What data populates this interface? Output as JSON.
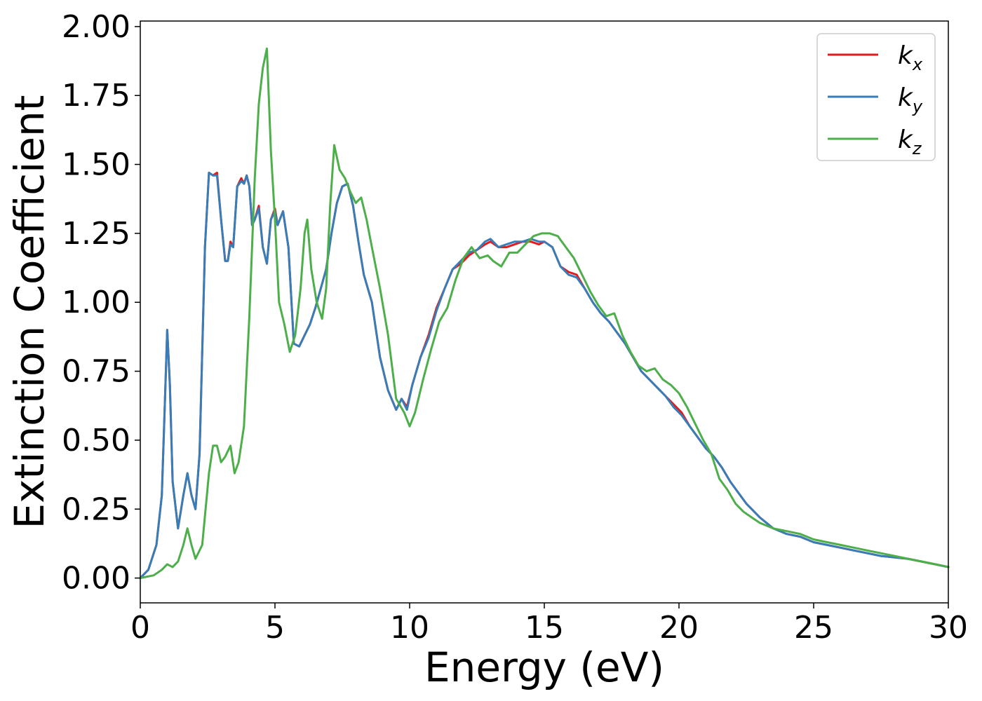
{
  "chart_data": {
    "type": "line",
    "xlabel": "Energy (eV)",
    "ylabel": "Extinction Coefficient",
    "xlim": [
      0,
      30
    ],
    "ylim": [
      -0.09,
      2.02
    ],
    "x_ticks": [
      0,
      5,
      10,
      15,
      20,
      25,
      30
    ],
    "x_tick_labels": [
      "0",
      "5",
      "10",
      "15",
      "20",
      "25",
      "30"
    ],
    "y_ticks": [
      0.0,
      0.25,
      0.5,
      0.75,
      1.0,
      1.25,
      1.5,
      1.75,
      2.0
    ],
    "y_tick_labels": [
      "0.00",
      "0.25",
      "0.50",
      "0.75",
      "1.00",
      "1.25",
      "1.50",
      "1.75",
      "2.00"
    ],
    "grid": false,
    "legend_position": "top-right",
    "series": [
      {
        "name": "k_x",
        "legend_base": "k",
        "legend_sub": "x",
        "color": "#e41a1c",
        "x": [
          0,
          0.3,
          0.6,
          0.8,
          0.9,
          1.0,
          1.1,
          1.2,
          1.4,
          1.6,
          1.75,
          1.9,
          2.05,
          2.2,
          2.4,
          2.55,
          2.7,
          2.85,
          3.0,
          3.15,
          3.25,
          3.35,
          3.45,
          3.6,
          3.75,
          3.85,
          3.95,
          4.05,
          4.15,
          4.25,
          4.4,
          4.55,
          4.7,
          4.85,
          5.0,
          5.1,
          5.3,
          5.5,
          5.7,
          5.9,
          6.1,
          6.3,
          6.5,
          6.7,
          6.9,
          7.1,
          7.3,
          7.5,
          7.7,
          7.9,
          8.1,
          8.3,
          8.6,
          8.9,
          9.2,
          9.5,
          9.7,
          9.9,
          10.1,
          10.4,
          10.7,
          11.0,
          11.3,
          11.6,
          11.9,
          12.2,
          12.5,
          12.8,
          13.0,
          13.3,
          13.6,
          13.9,
          14.2,
          14.5,
          14.8,
          15.0,
          15.3,
          15.6,
          15.9,
          16.2,
          16.5,
          16.8,
          17.1,
          17.4,
          17.7,
          18.0,
          18.3,
          18.6,
          18.9,
          19.2,
          19.5,
          19.8,
          20.1,
          20.4,
          20.7,
          21.0,
          21.3,
          21.6,
          21.9,
          22.2,
          22.5,
          23.0,
          23.5,
          24.0,
          24.5,
          25.0,
          25.5,
          26.0,
          26.5,
          27.0,
          27.5,
          28.0,
          28.5,
          29.0,
          29.5,
          30.0
        ],
        "y": [
          0.0,
          0.03,
          0.12,
          0.3,
          0.6,
          0.9,
          0.7,
          0.35,
          0.18,
          0.3,
          0.38,
          0.3,
          0.25,
          0.45,
          1.2,
          1.47,
          1.46,
          1.47,
          1.3,
          1.15,
          1.15,
          1.22,
          1.2,
          1.42,
          1.45,
          1.43,
          1.46,
          1.42,
          1.28,
          1.3,
          1.35,
          1.2,
          1.14,
          1.3,
          1.34,
          1.28,
          1.33,
          1.2,
          0.85,
          0.84,
          0.88,
          0.92,
          0.98,
          1.05,
          1.12,
          1.25,
          1.36,
          1.42,
          1.43,
          1.35,
          1.22,
          1.1,
          1.0,
          0.8,
          0.68,
          0.61,
          0.65,
          0.62,
          0.7,
          0.8,
          0.88,
          0.98,
          1.05,
          1.12,
          1.14,
          1.17,
          1.19,
          1.21,
          1.22,
          1.2,
          1.2,
          1.21,
          1.22,
          1.22,
          1.21,
          1.22,
          1.2,
          1.13,
          1.11,
          1.1,
          1.05,
          1.0,
          0.96,
          0.93,
          0.89,
          0.85,
          0.8,
          0.75,
          0.72,
          0.69,
          0.66,
          0.63,
          0.6,
          0.55,
          0.51,
          0.47,
          0.44,
          0.4,
          0.35,
          0.31,
          0.27,
          0.22,
          0.18,
          0.16,
          0.15,
          0.13,
          0.12,
          0.11,
          0.1,
          0.09,
          0.08,
          0.075,
          0.07,
          0.06,
          0.05,
          0.04
        ]
      },
      {
        "name": "k_y",
        "legend_base": "k",
        "legend_sub": "y",
        "color": "#377eb8",
        "x": [
          0,
          0.3,
          0.6,
          0.8,
          0.9,
          1.0,
          1.1,
          1.2,
          1.4,
          1.6,
          1.75,
          1.9,
          2.05,
          2.2,
          2.4,
          2.55,
          2.7,
          2.85,
          3.0,
          3.15,
          3.25,
          3.35,
          3.45,
          3.6,
          3.75,
          3.85,
          3.95,
          4.05,
          4.15,
          4.25,
          4.4,
          4.55,
          4.7,
          4.85,
          5.0,
          5.1,
          5.3,
          5.5,
          5.7,
          5.9,
          6.1,
          6.3,
          6.5,
          6.7,
          6.9,
          7.1,
          7.3,
          7.5,
          7.7,
          7.9,
          8.1,
          8.3,
          8.6,
          8.9,
          9.2,
          9.5,
          9.7,
          9.9,
          10.1,
          10.4,
          10.7,
          11.0,
          11.3,
          11.6,
          11.9,
          12.2,
          12.5,
          12.8,
          13.0,
          13.3,
          13.6,
          13.9,
          14.2,
          14.5,
          14.8,
          15.0,
          15.3,
          15.6,
          15.9,
          16.2,
          16.5,
          16.8,
          17.1,
          17.4,
          17.7,
          18.0,
          18.3,
          18.6,
          18.9,
          19.2,
          19.5,
          19.8,
          20.1,
          20.4,
          20.7,
          21.0,
          21.3,
          21.6,
          21.9,
          22.2,
          22.5,
          23.0,
          23.5,
          24.0,
          24.5,
          25.0,
          25.5,
          26.0,
          26.5,
          27.0,
          27.5,
          28.0,
          28.5,
          29.0,
          29.5,
          30.0
        ],
        "y": [
          0.0,
          0.03,
          0.12,
          0.3,
          0.6,
          0.9,
          0.7,
          0.35,
          0.18,
          0.3,
          0.38,
          0.3,
          0.25,
          0.45,
          1.2,
          1.47,
          1.46,
          1.46,
          1.3,
          1.15,
          1.15,
          1.21,
          1.2,
          1.42,
          1.44,
          1.43,
          1.46,
          1.42,
          1.28,
          1.3,
          1.34,
          1.2,
          1.14,
          1.3,
          1.33,
          1.28,
          1.33,
          1.2,
          0.85,
          0.84,
          0.88,
          0.92,
          0.98,
          1.05,
          1.12,
          1.25,
          1.36,
          1.42,
          1.43,
          1.35,
          1.22,
          1.1,
          1.0,
          0.8,
          0.68,
          0.61,
          0.65,
          0.61,
          0.7,
          0.8,
          0.87,
          0.97,
          1.05,
          1.12,
          1.15,
          1.18,
          1.19,
          1.22,
          1.23,
          1.2,
          1.21,
          1.22,
          1.22,
          1.23,
          1.22,
          1.22,
          1.2,
          1.13,
          1.1,
          1.09,
          1.05,
          1.0,
          0.96,
          0.93,
          0.89,
          0.85,
          0.8,
          0.75,
          0.72,
          0.69,
          0.66,
          0.62,
          0.59,
          0.55,
          0.51,
          0.47,
          0.44,
          0.4,
          0.35,
          0.31,
          0.27,
          0.22,
          0.18,
          0.16,
          0.15,
          0.13,
          0.12,
          0.11,
          0.1,
          0.09,
          0.08,
          0.075,
          0.07,
          0.06,
          0.05,
          0.04
        ]
      },
      {
        "name": "k_z",
        "legend_base": "k",
        "legend_sub": "z",
        "color": "#4daf4a",
        "x": [
          0,
          0.5,
          0.8,
          1.0,
          1.2,
          1.4,
          1.6,
          1.75,
          1.9,
          2.05,
          2.3,
          2.55,
          2.7,
          2.85,
          3.0,
          3.15,
          3.35,
          3.5,
          3.65,
          3.85,
          4.05,
          4.25,
          4.4,
          4.55,
          4.7,
          4.85,
          5.0,
          5.15,
          5.35,
          5.55,
          5.75,
          5.95,
          6.1,
          6.2,
          6.35,
          6.55,
          6.75,
          6.9,
          7.05,
          7.2,
          7.4,
          7.6,
          7.8,
          8.0,
          8.2,
          8.4,
          8.6,
          8.9,
          9.2,
          9.5,
          9.8,
          10.0,
          10.2,
          10.5,
          10.8,
          11.1,
          11.4,
          11.7,
          12.0,
          12.3,
          12.6,
          12.9,
          13.1,
          13.4,
          13.7,
          14.0,
          14.3,
          14.6,
          14.9,
          15.2,
          15.5,
          15.8,
          16.1,
          16.4,
          16.7,
          17.0,
          17.3,
          17.6,
          17.9,
          18.2,
          18.5,
          18.8,
          19.1,
          19.4,
          19.7,
          20.0,
          20.3,
          20.6,
          20.9,
          21.2,
          21.5,
          21.8,
          22.1,
          22.4,
          22.7,
          23.0,
          23.5,
          24.0,
          24.5,
          25.0,
          25.5,
          26.0,
          26.5,
          27.0,
          27.5,
          28.0,
          28.5,
          29.0,
          29.5,
          30.0
        ],
        "y": [
          0.0,
          0.01,
          0.03,
          0.05,
          0.04,
          0.06,
          0.12,
          0.18,
          0.12,
          0.07,
          0.12,
          0.38,
          0.48,
          0.48,
          0.42,
          0.44,
          0.48,
          0.38,
          0.42,
          0.55,
          0.95,
          1.45,
          1.72,
          1.85,
          1.92,
          1.55,
          1.3,
          1.0,
          0.92,
          0.82,
          0.88,
          1.05,
          1.25,
          1.3,
          1.12,
          1.0,
          0.94,
          1.05,
          1.35,
          1.57,
          1.48,
          1.45,
          1.4,
          1.36,
          1.38,
          1.3,
          1.2,
          1.05,
          0.88,
          0.65,
          0.6,
          0.55,
          0.6,
          0.72,
          0.83,
          0.93,
          0.98,
          1.08,
          1.16,
          1.2,
          1.16,
          1.17,
          1.15,
          1.13,
          1.18,
          1.18,
          1.21,
          1.24,
          1.25,
          1.25,
          1.24,
          1.2,
          1.16,
          1.1,
          1.04,
          0.99,
          0.95,
          0.96,
          0.88,
          0.82,
          0.77,
          0.75,
          0.76,
          0.72,
          0.7,
          0.67,
          0.62,
          0.56,
          0.5,
          0.45,
          0.36,
          0.32,
          0.27,
          0.24,
          0.22,
          0.2,
          0.18,
          0.17,
          0.16,
          0.14,
          0.13,
          0.12,
          0.11,
          0.1,
          0.09,
          0.08,
          0.07,
          0.06,
          0.05,
          0.04
        ]
      }
    ]
  }
}
